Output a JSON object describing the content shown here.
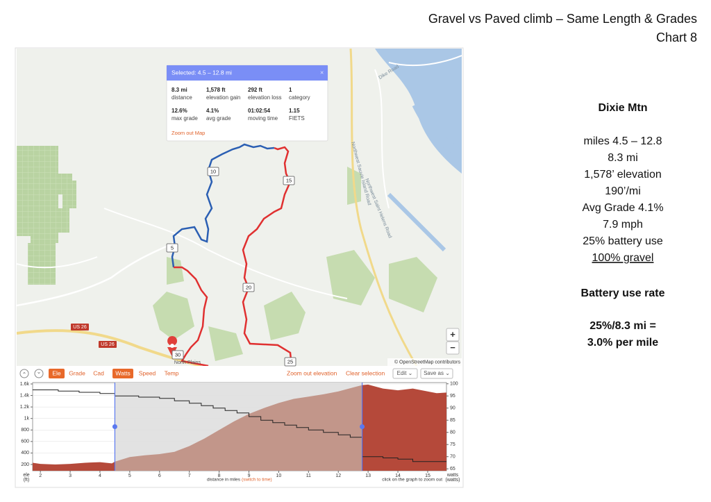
{
  "slide": {
    "title": "Gravel  vs Paved climb – Same Length & Grades",
    "subtitle": "Chart 8"
  },
  "panel": {
    "heading": "Dixie Mtn",
    "lines": [
      "miles 4.5 – 12.8",
      "8.3 mi",
      "1,578’ elevation",
      "190’/mi",
      "Avg Grade 4.1%",
      "7.9 mph",
      "25% battery use",
      "100% gravel"
    ],
    "rate_heading": "Battery use rate",
    "rate_lines": [
      "25%/8.3 mi =",
      "3.0% per mile"
    ]
  },
  "map": {
    "popup": {
      "title": "Selected: 4.5 – 12.8 mi",
      "close": "×",
      "stats": [
        {
          "value": "8.3 mi",
          "label": "distance"
        },
        {
          "value": "1,578 ft",
          "label": "elevation gain"
        },
        {
          "value": "292 ft",
          "label": "elevation loss"
        },
        {
          "value": "1",
          "label": "category"
        },
        {
          "value": "12.6%",
          "label": "max grade"
        },
        {
          "value": "4.1%",
          "label": "avg grade"
        },
        {
          "value": "01:02:54",
          "label": "moving time"
        },
        {
          "value": "1.15",
          "label": "FIETS"
        }
      ],
      "link": "Zoom out Map"
    },
    "mile_markers": [
      "10",
      "15",
      "5",
      "20",
      "25",
      "30"
    ],
    "road_labels": [
      "Dike Road",
      "Northwest Sauvie Island Road",
      "Northwest Saint Helens Road",
      "US 26",
      "US 26",
      "North Plains"
    ],
    "zoom": [
      "+",
      "−"
    ],
    "attribution": "© OpenStreetMap contributors"
  },
  "toolbar": {
    "up": "⌃",
    "down": "⌄",
    "tabs": [
      "Ele",
      "Grade",
      "Cad",
      "Watts",
      "Speed",
      "Temp"
    ],
    "zoom_out": "Zoom out elevation",
    "clear": "Clear selection",
    "edit": "Edit ⌄",
    "save": "Save as ⌄"
  },
  "chart_data": {
    "type": "area",
    "x_label": "distance in miles",
    "x_label_link": "(switch to time)",
    "y_label": "ele",
    "y_unit": "(ft)",
    "y2_label": "watts",
    "y2_unit": "(watts)",
    "note": "click on the graph to zoom out",
    "xlim": [
      1.74,
      15.63
    ],
    "xticks": [
      2,
      3,
      4,
      5,
      6,
      7,
      8,
      9,
      10,
      11,
      12,
      13,
      14,
      15
    ],
    "ylim": [
      91,
      1624
    ],
    "yticks": [
      {
        "value": 200,
        "label": "200"
      },
      {
        "value": 400,
        "label": "400"
      },
      {
        "value": 600,
        "label": "600"
      },
      {
        "value": 800,
        "label": "800"
      },
      {
        "value": 1000,
        "label": "1k"
      },
      {
        "value": 1200,
        "label": "1.2k"
      },
      {
        "value": 1400,
        "label": "1.4k"
      },
      {
        "value": 1600,
        "label": "1.6k"
      }
    ],
    "y2lim": [
      64.2,
      100.5
    ],
    "y2ticks": [
      65,
      70,
      75,
      80,
      85,
      90,
      95,
      100
    ],
    "grid": true,
    "selection": [
      4.5,
      12.8
    ],
    "series": [
      {
        "color": "#b5493a",
        "selected_color": "#c2968a",
        "x": [
          1.74,
          2,
          2.5,
          3,
          3.5,
          4,
          4.4,
          4.5,
          5,
          5.5,
          6,
          6.5,
          7,
          7.5,
          8,
          8.5,
          9,
          9.5,
          10,
          10.5,
          11,
          11.5,
          12,
          12.5,
          12.8,
          13,
          13.5,
          14,
          14.5,
          15,
          15.3,
          15.63
        ],
        "values": [
          230,
          210,
          200,
          210,
          230,
          240,
          220,
          250,
          330,
          360,
          380,
          420,
          520,
          650,
          800,
          950,
          1080,
          1180,
          1270,
          1340,
          1380,
          1420,
          1470,
          1540,
          1580,
          1590,
          1520,
          1490,
          1520,
          1470,
          1440,
          1450
        ]
      },
      {
        "color": "#222222",
        "axis": "y2",
        "step": true,
        "x": [
          1.74,
          2.6,
          3.3,
          4.0,
          4.5,
          5.3,
          6.0,
          6.5,
          7.0,
          7.4,
          7.8,
          8.2,
          8.6,
          9.0,
          9.4,
          9.8,
          10.2,
          10.6,
          11.0,
          11.5,
          12.0,
          12.4,
          12.8,
          13.5,
          14.0,
          14.5,
          15.63
        ],
        "values": [
          97.5,
          97,
          96.5,
          96,
          95,
          94.5,
          94,
          93,
          92,
          91,
          90,
          89,
          88,
          86.5,
          85,
          84,
          83,
          82,
          81,
          80,
          79,
          78,
          70,
          69.5,
          69,
          68,
          68
        ]
      }
    ]
  }
}
